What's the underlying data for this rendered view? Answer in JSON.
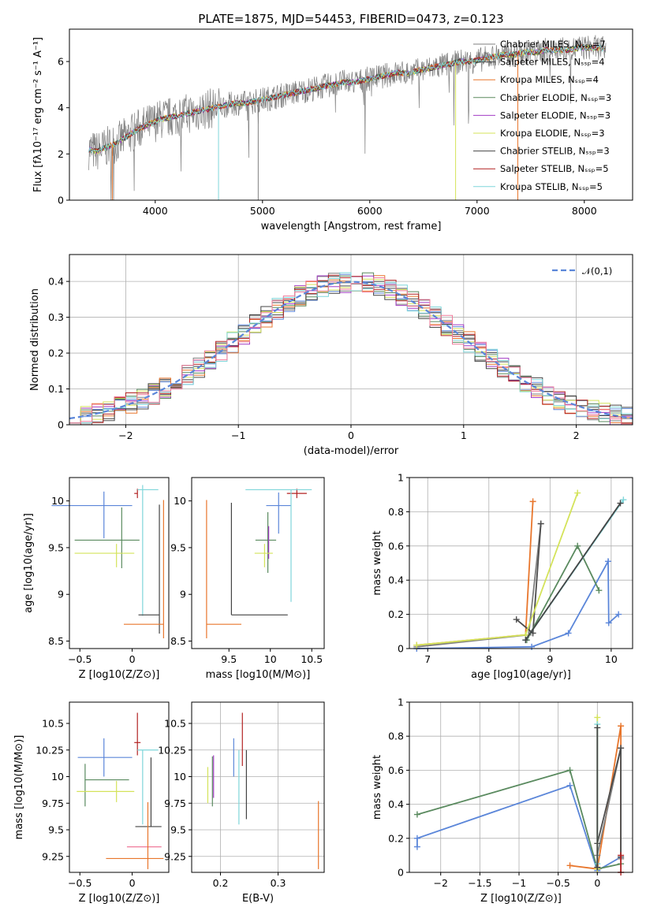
{
  "colors": {
    "chabrier_miles": "#7f7f7f",
    "salpeter_miles": "#4d4d4d",
    "kroupa_miles": "#e8762c",
    "chabrier_elodie": "#5a8a5f",
    "salpeter_elodie": "#a23bc4",
    "kroupa_elodie": "#d4e35a",
    "chabrier_stelib": "#444444",
    "salpeter_stelib": "#b22222",
    "kroupa_stelib": "#7fd6da",
    "blue": "#5b86d9",
    "pink": "#f07a9a"
  },
  "chart_data": [
    {
      "id": "spectrum",
      "type": "line",
      "title": "PLATE=1875, MJD=54453, FIBERID=0473, z=0.123",
      "xlabel": "wavelength [Angstrom, rest frame]",
      "ylabel": "Flux [fλ10⁻¹⁷ erg cm⁻² s⁻¹ A⁻¹]",
      "xlim": [
        3200,
        8450
      ],
      "ylim": [
        0,
        7.4
      ],
      "xticks": [
        4000,
        5000,
        6000,
        7000,
        8000
      ],
      "yticks": [
        0,
        2,
        4,
        6
      ],
      "grid": false,
      "legend_position": "top-right",
      "observed": {
        "x": [
          3380,
          3450,
          3550,
          3650,
          3750,
          3850,
          3950,
          4050,
          4150,
          4250,
          4350,
          4450,
          4550,
          4650,
          4750,
          4850,
          4950,
          5050,
          5150,
          5250,
          5350,
          5450,
          5550,
          5650,
          5750,
          5850,
          5950,
          6050,
          6150,
          6250,
          6350,
          6450,
          6550,
          6650,
          6750,
          6850,
          6950,
          7050,
          7150,
          7250,
          7350,
          7450,
          7550,
          7650,
          7750,
          7850,
          7950,
          8050,
          8150,
          8200
        ],
        "y": [
          2.2,
          2.1,
          2.3,
          2.5,
          2.8,
          3.1,
          3.3,
          3.5,
          3.6,
          3.7,
          3.8,
          3.9,
          4.0,
          4.1,
          4.2,
          4.2,
          4.3,
          4.4,
          4.5,
          4.6,
          4.7,
          4.8,
          4.9,
          5.0,
          5.1,
          5.1,
          5.2,
          5.3,
          5.4,
          5.5,
          5.5,
          5.6,
          5.7,
          5.8,
          5.9,
          6.0,
          6.0,
          6.1,
          6.2,
          6.3,
          6.3,
          6.4,
          6.4,
          6.5,
          6.5,
          6.5,
          6.6,
          6.6,
          6.6,
          6.5
        ]
      },
      "series": [
        {
          "name": "Chabrier MILES, N_SSP=7",
          "color_key": "chabrier_miles"
        },
        {
          "name": "Salpeter MILES, N_SSP=4",
          "color_key": "salpeter_miles"
        },
        {
          "name": "Kroupa MILES, N_SSP=4",
          "color_key": "kroupa_miles"
        },
        {
          "name": "Chabrier ELODIE, N_SSP=3",
          "color_key": "chabrier_elodie"
        },
        {
          "name": "Salpeter ELODIE, N_SSP=3",
          "color_key": "salpeter_elodie"
        },
        {
          "name": "Kroupa ELODIE, N_SSP=3",
          "color_key": "kroupa_elodie"
        },
        {
          "name": "Chabrier STELIB, N_SSP=3",
          "color_key": "chabrier_stelib"
        },
        {
          "name": "Salpeter STELIB, N_SSP=5",
          "color_key": "salpeter_stelib"
        },
        {
          "name": "Kroupa STELIB, N_SSP=5",
          "color_key": "kroupa_stelib"
        }
      ]
    },
    {
      "id": "residuals",
      "type": "line",
      "xlabel": "(data-model)/error",
      "ylabel": "Normed distribution",
      "xlim": [
        -2.5,
        2.5
      ],
      "ylim": [
        0,
        0.475
      ],
      "xticks": [
        -2,
        -1,
        0,
        1,
        2
      ],
      "yticks": [
        0.0,
        0.1,
        0.2,
        0.3,
        0.4
      ],
      "grid": true,
      "legend_position": "top-right",
      "reference": {
        "name": "𝒩(0,1)",
        "color_key": "blue",
        "style": "dashed"
      },
      "bin_width": 0.1
    },
    {
      "id": "age_vs_Z",
      "type": "scatter",
      "xlabel": "Z [log10(Z/Z⊙)]",
      "ylabel": "age  [log10(age/yr)]",
      "xlim": [
        -0.6,
        0.35
      ],
      "ylim": [
        8.42,
        10.25
      ],
      "xticks": [
        -0.5,
        0.0
      ],
      "yticks": [
        8.5,
        9.0,
        9.5,
        10.0
      ],
      "points": [
        {
          "x": -0.27,
          "y": 9.95,
          "xerr": [
            0.5,
            0.27
          ],
          "yerr": [
            0.35,
            0.15
          ],
          "color_key": "blue"
        },
        {
          "x": -0.1,
          "y": 9.58,
          "xerr": [
            0.45,
            0.17
          ],
          "yerr": [
            0.3,
            0.35
          ],
          "color_key": "chabrier_elodie"
        },
        {
          "x": -0.15,
          "y": 9.44,
          "xerr": [
            0.4,
            0.17
          ],
          "yerr": [
            0.15,
            0.1
          ],
          "color_key": "kroupa_elodie"
        },
        {
          "x": 0.05,
          "y": 10.08,
          "xerr": [
            0.03,
            0.0
          ],
          "yerr": [
            0.05,
            0.05
          ],
          "color_key": "salpeter_stelib"
        },
        {
          "x": 0.1,
          "y": 10.12,
          "xerr": [
            0.05,
            0.15
          ],
          "yerr": [
            1.35,
            0.05
          ],
          "color_key": "kroupa_stelib"
        },
        {
          "x": 0.26,
          "y": 8.78,
          "xerr": [
            0.2,
            0.0
          ],
          "yerr": [
            0.2,
            1.18
          ],
          "color_key": "chabrier_stelib"
        },
        {
          "x": 0.3,
          "y": 8.68,
          "xerr": [
            0.38,
            0.0
          ],
          "yerr": [
            0.15,
            1.33
          ],
          "color_key": "kroupa_miles"
        }
      ]
    },
    {
      "id": "age_vs_mass",
      "type": "scatter",
      "xlabel": "mass [log10(M/M⊙)]",
      "ylabel": "",
      "xlim": [
        9.05,
        10.65
      ],
      "ylim": [
        8.42,
        10.25
      ],
      "xticks": [
        9.5,
        10.0,
        10.5
      ],
      "yticks": [
        8.5,
        9.0,
        9.5,
        10.0
      ],
      "points": [
        {
          "x": 10.1,
          "y": 9.95,
          "xerr": [
            0.15,
            0.15
          ],
          "yerr": [
            0.3,
            0.14
          ],
          "color_key": "blue"
        },
        {
          "x": 9.97,
          "y": 9.58,
          "xerr": [
            0.15,
            0.1
          ],
          "yerr": [
            0.35,
            0.3
          ],
          "color_key": "chabrier_elodie"
        },
        {
          "x": 9.98,
          "y": 9.58,
          "xerr": [
            0.0,
            0.0
          ],
          "yerr": [
            0.2,
            0.15
          ],
          "color_key": "salpeter_elodie"
        },
        {
          "x": 9.93,
          "y": 9.44,
          "xerr": [
            0.12,
            0.1
          ],
          "yerr": [
            0.15,
            0.1
          ],
          "color_key": "kroupa_elodie"
        },
        {
          "x": 10.32,
          "y": 10.08,
          "xerr": [
            0.12,
            0.12
          ],
          "yerr": [
            0.05,
            0.05
          ],
          "color_key": "salpeter_stelib"
        },
        {
          "x": 10.25,
          "y": 10.12,
          "xerr": [
            0.55,
            0.25
          ],
          "yerr": [
            1.2,
            0.0
          ],
          "color_key": "kroupa_stelib"
        },
        {
          "x": 9.53,
          "y": 8.78,
          "xerr": [
            0.0,
            0.68
          ],
          "yerr": [
            0.0,
            1.2
          ],
          "color_key": "chabrier_stelib"
        },
        {
          "x": 9.23,
          "y": 8.68,
          "xerr": [
            0.0,
            0.42
          ],
          "yerr": [
            0.15,
            1.33
          ],
          "color_key": "kroupa_miles"
        }
      ]
    },
    {
      "id": "weight_vs_age",
      "type": "line",
      "xlabel": "age  [log10(age/yr)]",
      "ylabel": "mass weight",
      "xlim": [
        6.7,
        10.35
      ],
      "ylim": [
        0,
        1.0
      ],
      "xticks": [
        7,
        8,
        9,
        10
      ],
      "yticks": [
        0.0,
        0.2,
        0.4,
        0.6,
        0.8,
        1.0
      ],
      "grid": true,
      "series": [
        {
          "color_key": "blue",
          "x": [
            6.82,
            8.7,
            9.3,
            9.95,
            9.96,
            10.12
          ],
          "y": [
            0.0,
            0.01,
            0.09,
            0.51,
            0.15,
            0.2
          ]
        },
        {
          "color_key": "kroupa_miles",
          "x": [
            6.82,
            8.6,
            8.72
          ],
          "y": [
            0.02,
            0.08,
            0.86
          ]
        },
        {
          "color_key": "chabrier_miles",
          "x": [
            6.82,
            8.65,
            8.85
          ],
          "y": [
            0.01,
            0.08,
            0.73
          ]
        },
        {
          "color_key": "salpeter_miles",
          "x": [
            8.45,
            8.72,
            8.85
          ],
          "y": [
            0.17,
            0.09,
            0.73
          ]
        },
        {
          "color_key": "chabrier_elodie",
          "x": [
            8.62,
            9.45,
            9.8
          ],
          "y": [
            0.05,
            0.6,
            0.34
          ]
        },
        {
          "color_key": "kroupa_elodie",
          "x": [
            6.82,
            8.6,
            9.45
          ],
          "y": [
            0.02,
            0.08,
            0.91
          ]
        },
        {
          "color_key": "kroupa_stelib",
          "x": [
            8.6,
            10.2
          ],
          "y": [
            0.05,
            0.87
          ]
        },
        {
          "color_key": "chabrier_stelib",
          "x": [
            8.6,
            10.15
          ],
          "y": [
            0.05,
            0.85
          ]
        }
      ]
    },
    {
      "id": "mass_vs_Z",
      "type": "scatter",
      "xlabel": "Z [log10(Z/Z⊙)]",
      "ylabel": "mass [log10(M/M⊙)]",
      "xlim": [
        -0.6,
        0.35
      ],
      "ylim": [
        9.1,
        10.7
      ],
      "xticks": [
        -0.5,
        0.0
      ],
      "yticks": [
        9.25,
        9.5,
        9.75,
        10.0,
        10.25,
        10.5
      ],
      "points": [
        {
          "x": -0.27,
          "y": 10.18,
          "xerr": [
            0.25,
            0.27
          ],
          "yerr": [
            0.18,
            0.18
          ],
          "color_key": "blue"
        },
        {
          "x": -0.45,
          "y": 9.97,
          "xerr": [
            0.0,
            0.42
          ],
          "yerr": [
            0.25,
            0.15
          ],
          "color_key": "chabrier_elodie"
        },
        {
          "x": -0.15,
          "y": 9.86,
          "xerr": [
            0.38,
            0.17
          ],
          "yerr": [
            0.1,
            0.1
          ],
          "color_key": "kroupa_elodie"
        },
        {
          "x": 0.05,
          "y": 10.32,
          "xerr": [
            0.03,
            0.03
          ],
          "yerr": [
            0.12,
            0.28
          ],
          "color_key": "salpeter_stelib"
        },
        {
          "x": 0.1,
          "y": 10.25,
          "xerr": [
            0.05,
            0.15
          ],
          "yerr": [
            0.7,
            0.0
          ],
          "color_key": "kroupa_stelib"
        },
        {
          "x": 0.18,
          "y": 9.53,
          "xerr": [
            0.15,
            0.1
          ],
          "yerr": [
            0.0,
            0.65
          ],
          "color_key": "chabrier_stelib"
        },
        {
          "x": 0.1,
          "y": 9.34,
          "xerr": [
            0.15,
            0.18
          ],
          "yerr": [
            0.0,
            0.0
          ],
          "color_key": "pink"
        },
        {
          "x": 0.15,
          "y": 9.23,
          "xerr": [
            0.4,
            0.15
          ],
          "yerr": [
            0.1,
            0.53
          ],
          "color_key": "kroupa_miles"
        }
      ]
    },
    {
      "id": "mass_vs_ebv",
      "type": "scatter",
      "xlabel": "E(B-V)",
      "ylabel": "",
      "xlim": [
        0.15,
        0.38
      ],
      "ylim": [
        9.1,
        10.7
      ],
      "xticks": [
        0.2,
        0.3
      ],
      "yticks": [
        9.25,
        9.5,
        9.75,
        10.0,
        10.25,
        10.5
      ],
      "grid": true,
      "points": [
        {
          "x": 0.178,
          "y": 9.92,
          "yerr": [
            0.17,
            0.17
          ],
          "color_key": "kroupa_elodie"
        },
        {
          "x": 0.186,
          "y": 9.97,
          "yerr": [
            0.25,
            0.22
          ],
          "color_key": "chabrier_elodie"
        },
        {
          "x": 0.188,
          "y": 10.0,
          "yerr": [
            0.2,
            0.2
          ],
          "color_key": "salpeter_elodie"
        },
        {
          "x": 0.223,
          "y": 10.18,
          "yerr": [
            0.18,
            0.18
          ],
          "color_key": "blue"
        },
        {
          "x": 0.232,
          "y": 10.0,
          "yerr": [
            0.45,
            0.25
          ],
          "color_key": "kroupa_stelib"
        },
        {
          "x": 0.238,
          "y": 10.32,
          "yerr": [
            0.22,
            0.28
          ],
          "color_key": "salpeter_stelib"
        },
        {
          "x": 0.245,
          "y": 9.9,
          "yerr": [
            0.3,
            0.35
          ],
          "color_key": "chabrier_stelib"
        },
        {
          "x": 0.37,
          "y": 9.45,
          "yerr": [
            0.32,
            0.32
          ],
          "color_key": "kroupa_miles"
        }
      ]
    },
    {
      "id": "weight_vs_Z",
      "type": "line",
      "xlabel": "Z [log10(Z/Z⊙)]",
      "ylabel": "mass weight",
      "xlim": [
        -2.4,
        0.45
      ],
      "ylim": [
        0,
        1.0
      ],
      "xticks": [
        -2.0,
        -1.5,
        -1.0,
        -0.5,
        0.0
      ],
      "yticks": [
        0.0,
        0.2,
        0.4,
        0.6,
        0.8,
        1.0
      ],
      "grid": true,
      "series": [
        {
          "color_key": "blue",
          "x": [
            -2.3,
            -2.3,
            -0.35,
            0.0,
            0.3
          ],
          "y": [
            0.15,
            0.2,
            0.51,
            0.01,
            0.09
          ]
        },
        {
          "color_key": "chabrier_elodie",
          "x": [
            -2.3,
            -0.35,
            0.0,
            0.3
          ],
          "y": [
            0.34,
            0.6,
            0.02,
            0.05
          ]
        },
        {
          "color_key": "kroupa_miles",
          "x": [
            -0.35,
            0.0,
            0.3,
            0.3
          ],
          "y": [
            0.04,
            0.02,
            0.86,
            0.08
          ]
        },
        {
          "color_key": "chabrier_miles",
          "x": [
            0.0,
            0.3,
            0.3
          ],
          "y": [
            0.1,
            0.73,
            0.08
          ]
        },
        {
          "color_key": "salpeter_miles",
          "x": [
            0.0,
            0.3,
            0.3
          ],
          "y": [
            0.17,
            0.73,
            0.09
          ]
        },
        {
          "color_key": "kroupa_elodie",
          "x": [
            0.0,
            0.0
          ],
          "y": [
            0.02,
            0.91
          ]
        },
        {
          "color_key": "kroupa_stelib",
          "x": [
            0.0,
            0.0
          ],
          "y": [
            0.05,
            0.87
          ]
        },
        {
          "color_key": "chabrier_stelib",
          "x": [
            0.0,
            0.0
          ],
          "y": [
            0.03,
            0.85
          ]
        },
        {
          "color_key": "salpeter_stelib",
          "x": [
            0.3,
            0.3
          ],
          "y": [
            0.1,
            0.0
          ]
        }
      ]
    }
  ]
}
